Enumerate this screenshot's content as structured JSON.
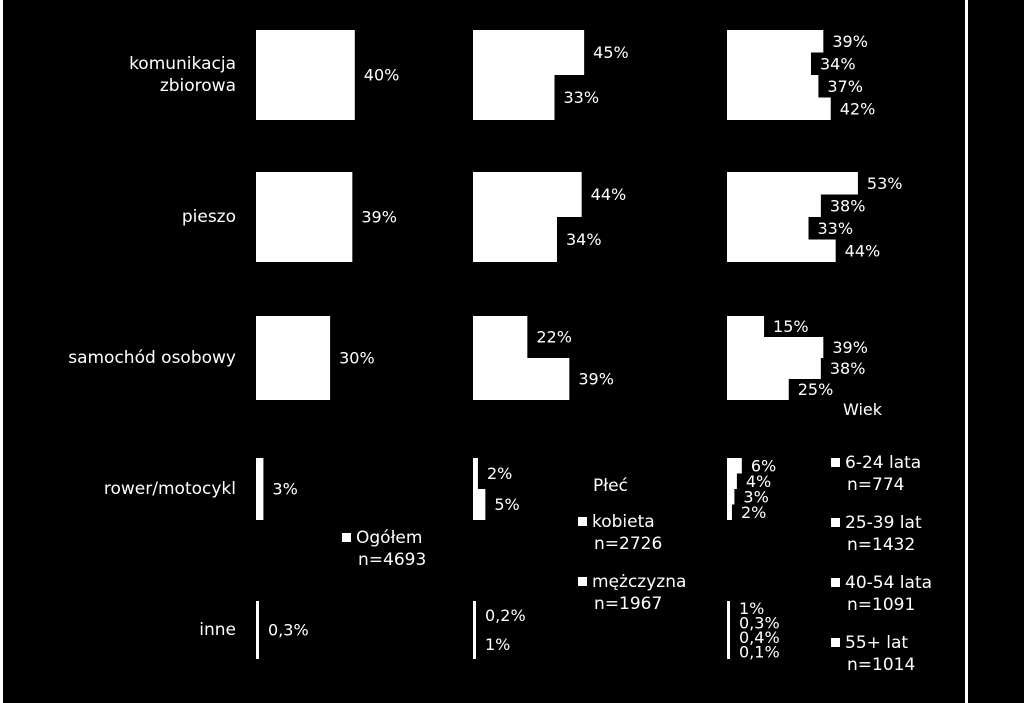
{
  "chart_data": [
    {
      "type": "bar",
      "orientation": "horizontal",
      "categories": [
        "komunikacja zbiorowa",
        "pieszo",
        "samochód osobowy",
        "rower/motocykl",
        "inne"
      ],
      "category_lines": [
        [
          "komunikacja",
          "zbiorowa"
        ],
        [
          "pieszo"
        ],
        [
          "samochód osobowy"
        ],
        [
          "rower/motocykl"
        ],
        [
          "inne"
        ]
      ],
      "series": [
        {
          "name": "Ogółem",
          "n": "n=4693",
          "values": [
            40,
            39,
            30,
            3,
            0.3
          ],
          "labels": [
            "40%",
            "39%",
            "30%",
            "3%",
            "0,3%"
          ]
        }
      ]
    },
    {
      "type": "bar",
      "orientation": "horizontal",
      "legend_title": "Płeć",
      "categories": [
        "komunikacja zbiorowa",
        "pieszo",
        "samochód osobowy",
        "rower/motocykl",
        "inne"
      ],
      "series": [
        {
          "name": "kobieta",
          "n": "n=2726",
          "values": [
            45,
            44,
            22,
            2,
            0.2
          ],
          "labels": [
            "45%",
            "44%",
            "22%",
            "2%",
            "0,2%"
          ]
        },
        {
          "name": "mężczyzna",
          "n": "n=1967",
          "values": [
            33,
            34,
            39,
            5,
            1
          ],
          "labels": [
            "33%",
            "34%",
            "39%",
            "5%",
            "1%"
          ]
        }
      ]
    },
    {
      "type": "bar",
      "orientation": "horizontal",
      "legend_title": "Wiek",
      "categories": [
        "komunikacja zbiorowa",
        "pieszo",
        "samochód osobowy",
        "rower/motocykl",
        "inne"
      ],
      "series": [
        {
          "name": "6-24 lata",
          "n": "n=774",
          "values": [
            39,
            53,
            15,
            6,
            1
          ],
          "labels": [
            "39%",
            "53%",
            "15%",
            "6%",
            "1%"
          ]
        },
        {
          "name": "25-39 lat",
          "n": "n=1432",
          "values": [
            34,
            38,
            39,
            4,
            0.3
          ],
          "labels": [
            "34%",
            "38%",
            "39%",
            "4%",
            "0,3%"
          ]
        },
        {
          "name": "40-54 lata",
          "n": "n=1091",
          "values": [
            37,
            33,
            38,
            3,
            0.4
          ],
          "labels": [
            "37%",
            "33%",
            "38%",
            "3%",
            "0,4%"
          ]
        },
        {
          "name": "55+ lat",
          "n": "n=1014",
          "values": [
            42,
            44,
            25,
            2,
            0.1
          ],
          "labels": [
            "42%",
            "44%",
            "25%",
            "2%",
            "0,1%"
          ]
        }
      ]
    }
  ],
  "colors": {
    "background": "#000000",
    "bars": "#ffffff",
    "text": "#ffffff"
  }
}
